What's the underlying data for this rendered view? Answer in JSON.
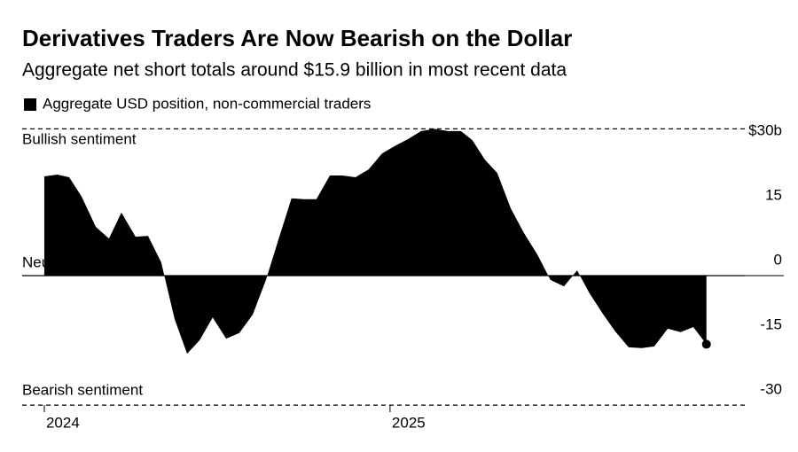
{
  "chart_data": {
    "type": "area",
    "title": "Derivatives Traders Are Now Bearish on the Dollar",
    "subtitle": "Aggregate net short totals around $15.9 billion in most recent data",
    "annotations": [
      "Bullish sentiment",
      "Neutral",
      "Bearish sentiment"
    ],
    "x": [
      2024.0,
      2024.038,
      2024.072,
      2024.108,
      2024.149,
      2024.187,
      2024.223,
      2024.264,
      2024.3,
      2024.338,
      2024.377,
      2024.413,
      2024.449,
      2024.487,
      2024.526,
      2024.564,
      2024.603,
      2024.641,
      2024.679,
      2024.715,
      2024.751,
      2024.787,
      2024.826,
      2024.862,
      2024.9,
      2024.938,
      2024.977,
      2025.013,
      2025.051,
      2025.09,
      2025.128,
      2025.167,
      2025.205,
      2025.238,
      2025.274,
      2025.31,
      2025.349,
      2025.387,
      2025.426,
      2025.464,
      2025.503,
      2025.541,
      2025.577,
      2025.615,
      2025.651,
      2025.69,
      2025.728,
      2025.764,
      2025.803,
      2025.841,
      2025.877,
      2025.915
    ],
    "series": [
      {
        "name": "Aggregate USD position, non-commercial traders",
        "color": "#000000",
        "values": [
          23.0,
          23.4,
          22.8,
          18.3,
          11.3,
          8.6,
          14.6,
          9.0,
          9.2,
          3.1,
          -10.1,
          -18.1,
          -15.0,
          -9.7,
          -14.6,
          -13.3,
          -9.0,
          -1.0,
          8.8,
          17.9,
          17.7,
          17.7,
          23.2,
          23.2,
          22.8,
          24.6,
          28.3,
          30.0,
          31.6,
          33.5,
          34.0,
          33.5,
          33.5,
          31.4,
          26.9,
          23.8,
          15.6,
          9.9,
          4.9,
          -1.0,
          -2.5,
          1.2,
          -4.1,
          -8.8,
          -12.9,
          -16.6,
          -16.8,
          -16.4,
          -12.3,
          -13.1,
          -11.9,
          -15.9
        ]
      }
    ],
    "xlim": [
      2023.936,
      2026.026
    ],
    "xticks": [
      2024,
      2025
    ],
    "ylim": [
      -30,
      34
    ],
    "yticks": [
      {
        "value": 30,
        "label": "$30b"
      },
      15,
      0,
      -15,
      -30
    ]
  }
}
